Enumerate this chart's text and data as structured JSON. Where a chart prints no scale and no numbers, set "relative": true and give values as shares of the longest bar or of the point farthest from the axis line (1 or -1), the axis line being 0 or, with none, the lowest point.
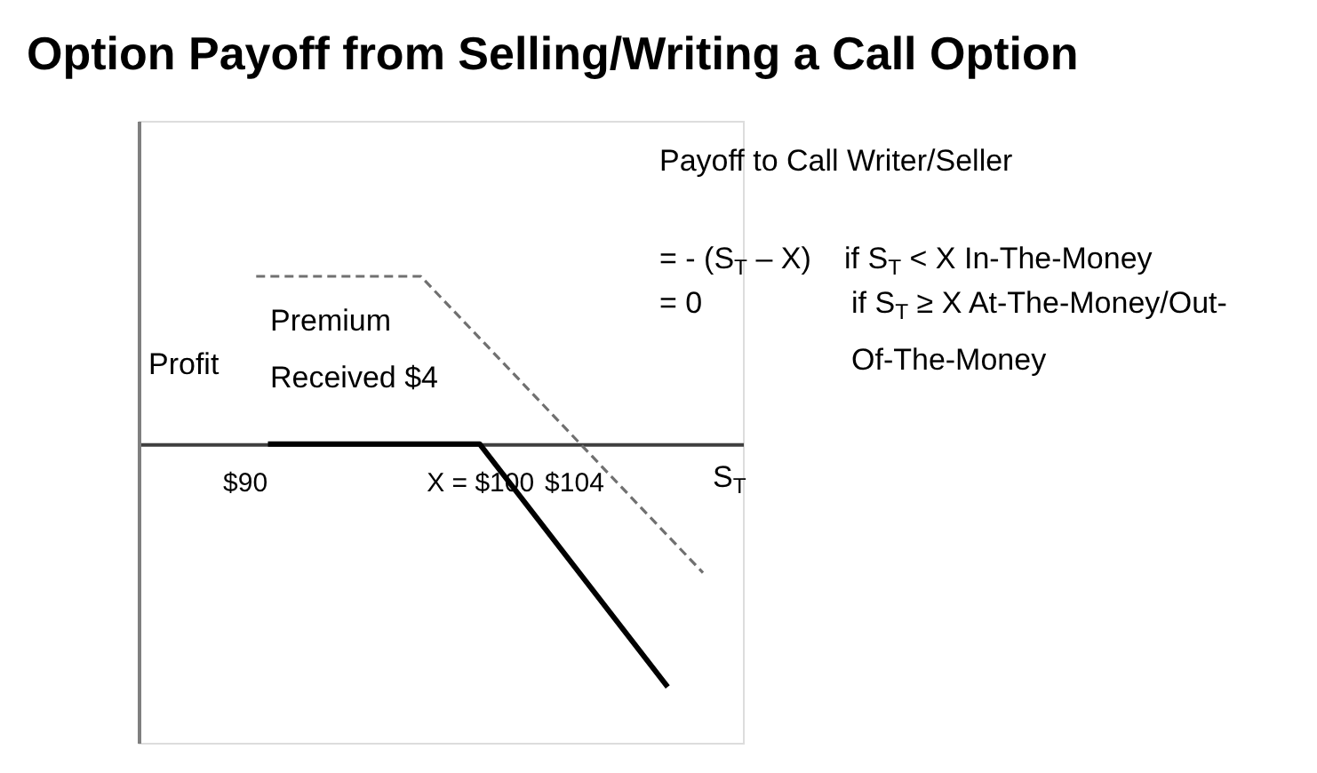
{
  "chart_data": {
    "type": "line",
    "title": "Option Payoff from Selling/Writing a Call Option",
    "xlabel": "S$_{T}$",
    "ylabel": "Profit",
    "relative": true,
    "xlim": [
      85.5,
      111.2
    ],
    "xticks": [
      {
        "value": 90,
        "label": "$90"
      },
      {
        "value": 100,
        "label": "X = $100"
      },
      {
        "value": 104,
        "label": "$104"
      }
    ],
    "series": [
      {
        "color": "#000000",
        "line_style": "solid",
        "x": [
          91,
          100,
          108
        ],
        "values": [
          0,
          0,
          -1
        ]
      },
      {
        "color": "#707070",
        "line_style": "dashed",
        "x": [
          90.5,
          97.5,
          109.5
        ],
        "values": [
          0.69,
          0.69,
          -0.53
        ]
      }
    ],
    "annotations": [
      "Payoff to Call Writer/Seller",
      "= - (S$_{T}$ – X)",
      "if S$_{T}$ < X In-The-Money",
      "= 0",
      "if S$_{T}$ ≥ X At-The-Money/Out-Of-The-Money",
      "Premium Received $4"
    ],
    "grid": false,
    "marker": "none"
  }
}
